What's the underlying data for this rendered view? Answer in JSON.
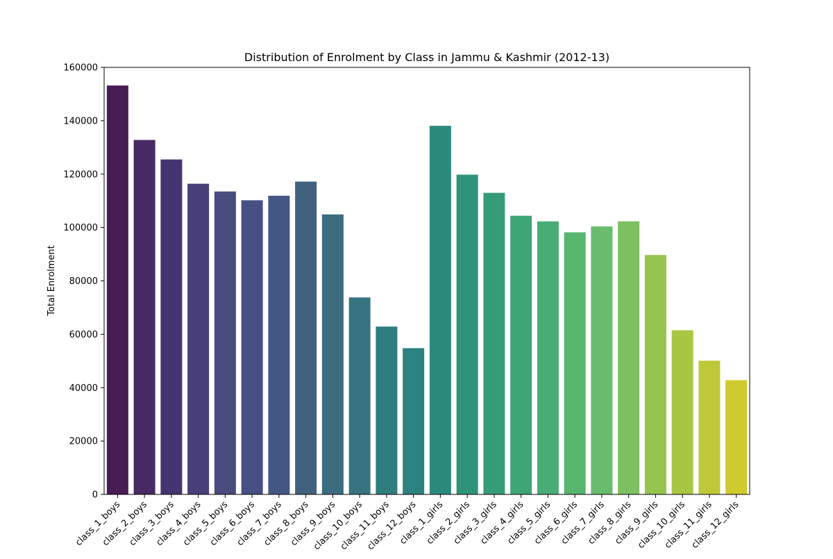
{
  "chart_data": {
    "type": "bar",
    "title": "Distribution of Enrolment by Class in Jammu & Kashmir (2012-13)",
    "xlabel": "",
    "ylabel": "Total Enrolment",
    "ylim": [
      0,
      160000
    ],
    "yticks": [
      "0",
      "20000",
      "40000",
      "60000",
      "80000",
      "100000",
      "120000",
      "140000",
      "160000"
    ],
    "grid": false,
    "legend": "none",
    "categories": [
      "class_1_boys",
      "class_2_boys",
      "class_3_boys",
      "class_4_boys",
      "class_5_boys",
      "class_6_boys",
      "class_7_boys",
      "class_8_boys",
      "class_9_boys",
      "class_10_boys",
      "class_11_boys",
      "class_12_boys",
      "class_1_girls",
      "class_2_girls",
      "class_3_girls",
      "class_4_girls",
      "class_5_girls",
      "class_6_girls",
      "class_7_girls",
      "class_8_girls",
      "class_9_girls",
      "class_10_girls",
      "class_11_girls",
      "class_12_girls"
    ],
    "values": [
      153200,
      132800,
      125500,
      116400,
      113500,
      110200,
      111900,
      117200,
      104900,
      73800,
      62900,
      54800,
      138100,
      119800,
      113000,
      104400,
      102300,
      98200,
      100400,
      102300,
      89700,
      61500,
      50100,
      42800
    ],
    "colors": [
      "#481c54",
      "#472a63",
      "#463470",
      "#483f79",
      "#494b7e",
      "#474f84",
      "#445784",
      "#41627f",
      "#3c6c7f",
      "#367580",
      "#307d80",
      "#2c8280",
      "#2c8a7c",
      "#2f937a",
      "#369c78",
      "#3ea676",
      "#48ad74",
      "#58b56e",
      "#68bc6b",
      "#7cc061",
      "#95c44f",
      "#a9c642",
      "#bfc836",
      "#cfcb2f"
    ]
  }
}
